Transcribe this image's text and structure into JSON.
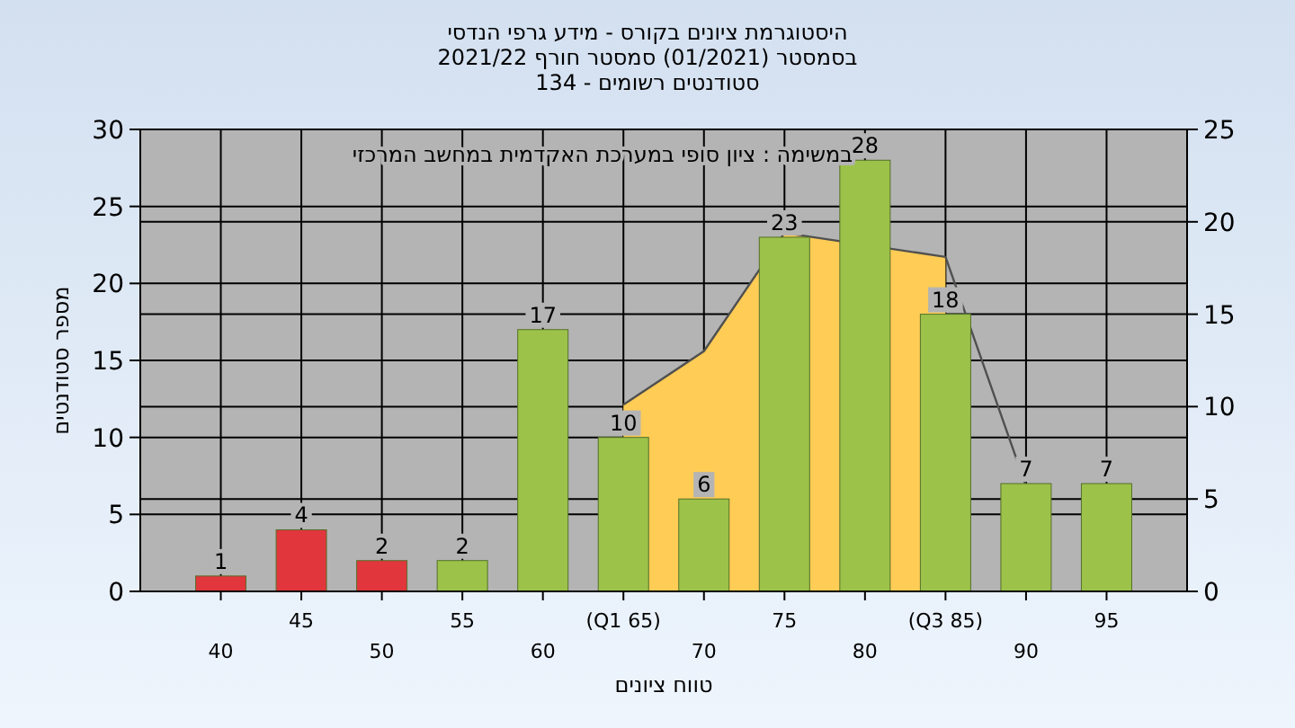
{
  "chart_data": {
    "type": "bar",
    "title": "היסטוגרמת ציונים בקורס - מידע גרפי הנדסי",
    "subtitle": "בסמסטר  (01/2021)  סמסטר חורף 2021/22\nסטודנטים רשומים - 134",
    "xlabel": "טווח ציונים",
    "ylabel": "מספר סטודנטים",
    "categories": [
      "40",
      "45",
      "50",
      "55",
      "60",
      "(Q1 65)",
      "70",
      "75",
      "80",
      "(Q3 85)",
      "90",
      "95"
    ],
    "series": [
      {
        "colors": [
          "#e0363c",
          "#e0363c",
          "#e0363c",
          "#9cc24a",
          "#9cc24a",
          "#9cc24a",
          "#9cc24a",
          "#9cc24a",
          "#9cc24a",
          "#9cc24a",
          "#9cc24a",
          "#9cc24a"
        ],
        "values": [
          1,
          4,
          2,
          2,
          17,
          10,
          6,
          23,
          28,
          18,
          7,
          7
        ],
        "value_labels": [
          "1",
          "4",
          "2",
          "2",
          "17",
          "10",
          "6",
          "23",
          "28",
          "18",
          "7",
          "7"
        ]
      },
      {
        "type": "area",
        "axis": "y2",
        "color": "#ffcc55",
        "values": [
          null,
          null,
          null,
          null,
          null,
          10.1,
          13,
          19.4,
          null,
          18.1,
          null,
          null
        ]
      },
      {
        "type": "line",
        "axis": "y2",
        "color": "#505050",
        "values": [
          null,
          null,
          null,
          null,
          null,
          10.1,
          13,
          19.4,
          null,
          18.1,
          5.7,
          null
        ]
      }
    ],
    "ylim": [
      0,
      30
    ],
    "yticks": [
      0,
      5,
      10,
      15,
      20,
      25,
      30
    ],
    "y2lim": [
      0,
      25
    ],
    "y2ticks": [
      0,
      5,
      10,
      15,
      20,
      25
    ],
    "grid": true,
    "annotations": [
      "במשימה : ציון סופי במערכת האקדמית במחשב המרכזי"
    ]
  }
}
